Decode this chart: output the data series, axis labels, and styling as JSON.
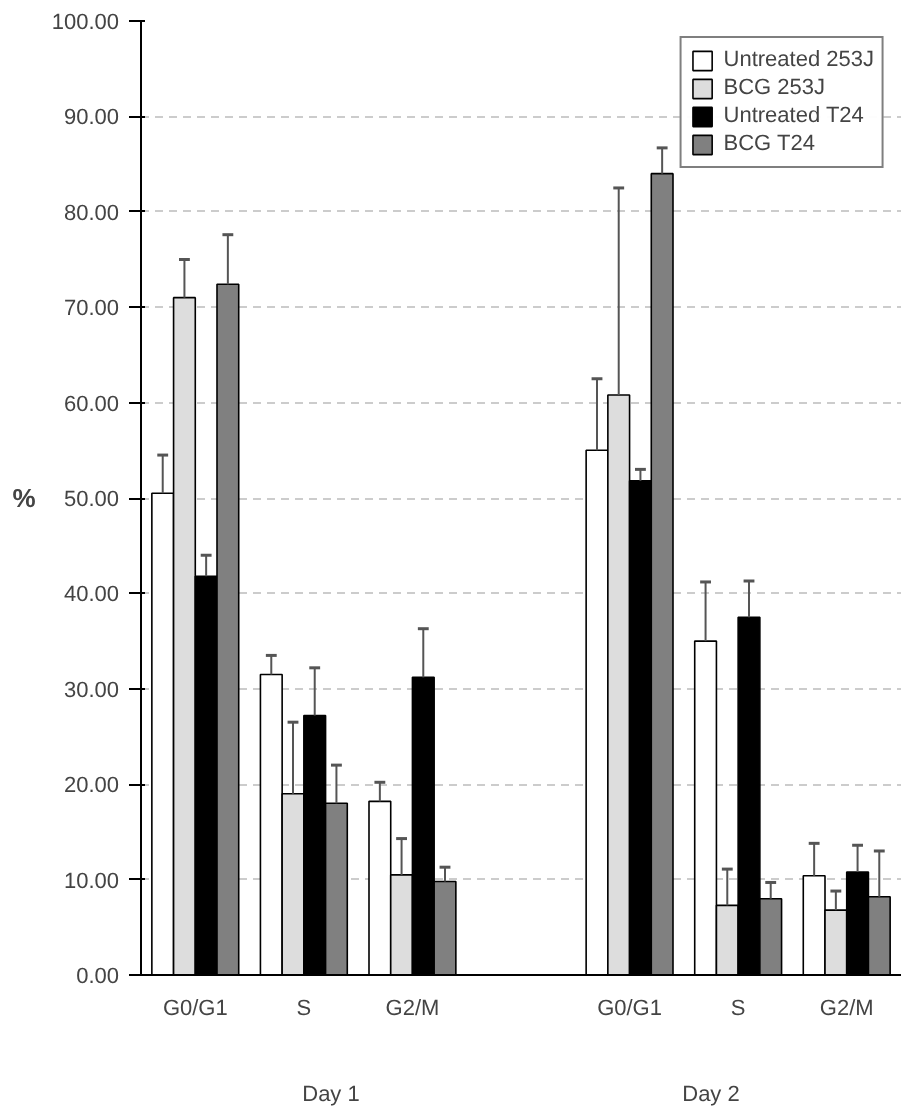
{
  "chart_data": {
    "type": "bar",
    "ylabel": "%",
    "categories": [
      "G0/G1",
      "S",
      "G2/M",
      null,
      "G0/G1",
      "S",
      "G2/M"
    ],
    "series": [
      {
        "name": "Untreated 253J",
        "color": "#ffffff",
        "values": [
          50.5,
          31.5,
          18.2,
          null,
          55.0,
          35.0,
          10.4
        ],
        "errors": [
          [
            50.5,
            54.5
          ],
          [
            31.5,
            33.5
          ],
          [
            18.2,
            20.2
          ],
          null,
          [
            55.0,
            62.5
          ],
          [
            35.0,
            41.2
          ],
          [
            10.4,
            13.8
          ]
        ]
      },
      {
        "name": "BCG 253J",
        "color": "#dddddd",
        "values": [
          71.0,
          19.0,
          10.5,
          null,
          60.8,
          7.3,
          6.8
        ],
        "errors": [
          [
            71.0,
            75.0
          ],
          [
            19.0,
            26.5
          ],
          [
            10.5,
            14.3
          ],
          null,
          [
            60.8,
            82.5
          ],
          [
            7.3,
            11.1
          ],
          [
            6.8,
            8.8
          ]
        ]
      },
      {
        "name": "Untreated T24",
        "color": "#000000",
        "values": [
          41.8,
          27.2,
          31.2,
          null,
          51.8,
          37.5,
          10.8
        ],
        "errors": [
          [
            41.8,
            44.0
          ],
          [
            27.2,
            32.2
          ],
          [
            31.2,
            36.3
          ],
          null,
          [
            51.8,
            53.0
          ],
          [
            37.5,
            41.3
          ],
          [
            10.8,
            13.6
          ]
        ]
      },
      {
        "name": "BCG T24",
        "color": "#808080",
        "values": [
          72.4,
          18.0,
          9.8,
          null,
          84.0,
          8.0,
          8.2
        ],
        "errors": [
          [
            72.4,
            77.6
          ],
          [
            18.0,
            22.0
          ],
          [
            9.8,
            11.3
          ],
          null,
          [
            84.0,
            86.7
          ],
          [
            8.0,
            9.7
          ],
          [
            8.2,
            13.0
          ]
        ]
      }
    ],
    "ylim": [
      0,
      100
    ],
    "yticks": [
      {
        "value": 0,
        "label": "0.00"
      },
      {
        "value": 10,
        "label": "10.00"
      },
      {
        "value": 20,
        "label": "20.00"
      },
      {
        "value": 30,
        "label": "30.00"
      },
      {
        "value": 40,
        "label": "40.00"
      },
      {
        "value": 50,
        "label": "50.00"
      },
      {
        "value": 60,
        "label": "60.00"
      },
      {
        "value": 70,
        "label": "70.00"
      },
      {
        "value": 80,
        "label": "80.00"
      },
      {
        "value": 90,
        "label": "90.00"
      },
      {
        "value": 100,
        "label": "100.00"
      }
    ],
    "grid": "y",
    "legend": "top right",
    "annotations": [
      "Day 1",
      "Day 2"
    ]
  }
}
